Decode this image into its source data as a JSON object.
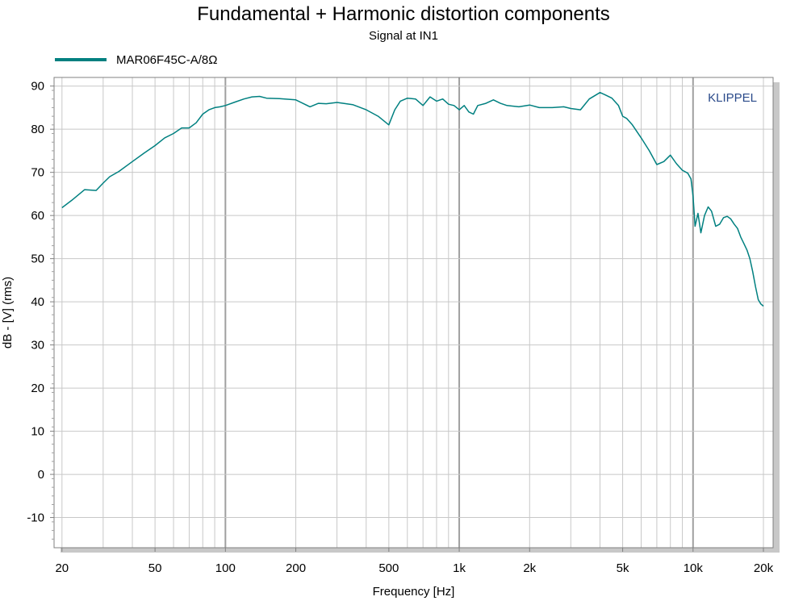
{
  "chart_data": {
    "type": "line",
    "title": "Fundamental + Harmonic distortion components",
    "subtitle": "Signal at IN1",
    "xlabel": "Frequency [Hz]",
    "ylabel": "dB - [V]  (rms)",
    "xscale": "log",
    "xlim": [
      18.5,
      22000
    ],
    "ylim": [
      -17,
      92
    ],
    "x_ticks": [
      20,
      50,
      100,
      200,
      500,
      1000,
      2000,
      5000,
      10000,
      20000
    ],
    "x_tick_labels": [
      "20",
      "50",
      "100",
      "200",
      "500",
      "1k",
      "2k",
      "5k",
      "10k",
      "20k"
    ],
    "y_ticks": [
      -10,
      0,
      10,
      20,
      30,
      40,
      50,
      60,
      70,
      80,
      90
    ],
    "y_tick_labels": [
      "-10",
      "0",
      "10",
      "20",
      "30",
      "40",
      "50",
      "60",
      "70",
      "80",
      "90"
    ],
    "grid": true,
    "legend_position": "top-left",
    "watermark": "KLIPPEL",
    "series": [
      {
        "name": "MAR06F45C-A/8Ω",
        "color": "#008080",
        "x": [
          20,
          22,
          25,
          28,
          30,
          32,
          35,
          40,
          45,
          50,
          55,
          60,
          65,
          70,
          75,
          80,
          85,
          90,
          95,
          100,
          110,
          120,
          130,
          140,
          150,
          170,
          200,
          230,
          250,
          270,
          300,
          350,
          400,
          450,
          500,
          530,
          560,
          600,
          650,
          700,
          750,
          800,
          850,
          900,
          950,
          1000,
          1050,
          1100,
          1150,
          1200,
          1300,
          1400,
          1500,
          1600,
          1800,
          2000,
          2200,
          2500,
          2800,
          3000,
          3300,
          3600,
          4000,
          4200,
          4500,
          4800,
          5000,
          5200,
          5500,
          6000,
          6500,
          7000,
          7500,
          8000,
          8500,
          9000,
          9500,
          9800,
          10000,
          10200,
          10500,
          10800,
          11200,
          11600,
          12000,
          12500,
          13000,
          13500,
          14000,
          14500,
          15000,
          15500,
          16000,
          16500,
          17000,
          17500,
          18000,
          18500,
          19000,
          19500,
          20000
        ],
        "values": [
          61.8,
          63.5,
          66,
          65.8,
          67.5,
          69,
          70.2,
          72.5,
          74.5,
          76.2,
          78,
          79,
          80.3,
          80.3,
          81.5,
          83.5,
          84.5,
          85,
          85.2,
          85.5,
          86.3,
          87,
          87.5,
          87.6,
          87.2,
          87.1,
          86.8,
          85.2,
          86,
          85.9,
          86.2,
          85.7,
          84.5,
          83,
          81,
          84.5,
          86.5,
          87.2,
          87,
          85.5,
          87.5,
          86.5,
          87,
          85.8,
          85.5,
          84.5,
          85.5,
          84,
          83.5,
          85.5,
          86,
          86.8,
          86,
          85.5,
          85.2,
          85.6,
          85,
          85,
          85.2,
          84.8,
          84.5,
          87,
          88.5,
          88,
          87.2,
          85.5,
          83,
          82.5,
          81,
          78,
          75,
          71.8,
          72.5,
          74,
          72,
          70.5,
          69.8,
          68.5,
          64.5,
          57.5,
          60.5,
          56,
          60,
          62,
          61,
          57.5,
          58,
          59.5,
          59.8,
          59.2,
          58,
          57,
          55,
          53.5,
          52,
          50,
          47,
          43.5,
          40.5,
          39.5,
          39
        ]
      }
    ]
  }
}
